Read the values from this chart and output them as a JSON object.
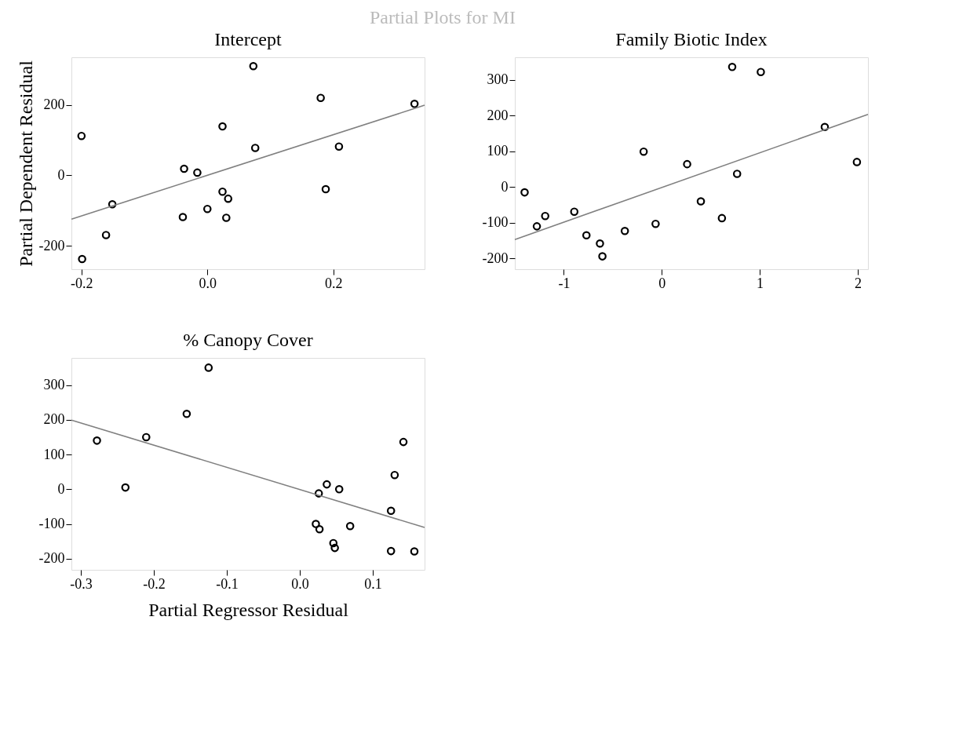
{
  "chart_data": [
    {
      "type": "scatter",
      "title": "Intercept",
      "ylabel": "Partial Dependent Residual",
      "annotations": [
        "Partial Plots for MI"
      ],
      "grid": false,
      "xlim": [
        -0.216,
        0.345
      ],
      "ylim": [
        -266,
        335
      ],
      "xticks": [
        {
          "value": -0.2,
          "label": "-0.2"
        },
        {
          "value": 0,
          "label": "0.0"
        },
        {
          "value": 0.2,
          "label": "0.2"
        }
      ],
      "yticks": [
        -200,
        0,
        200
      ],
      "series": [
        {
          "marker": "circle",
          "color": "#000000",
          "x": [
            -0.2,
            0.073,
            0.18,
            0.329,
            0.024,
            0.076,
            0.209,
            -0.037,
            -0.016,
            0.024,
            0.033,
            0.188,
            0.0,
            -0.039,
            0.03,
            -0.151,
            -0.161,
            -0.199
          ],
          "values": [
            112,
            310,
            220,
            203,
            139,
            78,
            82,
            19,
            8,
            -46,
            -66,
            -39,
            -95,
            -118,
            -120,
            -82,
            -169,
            -237
          ]
        },
        {
          "type": "line",
          "color": "#808080",
          "x": [
            -0.216,
            0.345
          ],
          "values": [
            -124,
            199
          ]
        }
      ]
    },
    {
      "type": "scatter",
      "title": "Family Biotic Index",
      "grid": false,
      "xlim": [
        -1.5,
        2.105
      ],
      "ylim": [
        -230,
        363
      ],
      "xticks": [
        -1,
        0,
        1,
        2
      ],
      "yticks": [
        -200,
        -100,
        0,
        100,
        200,
        300
      ],
      "series": [
        {
          "marker": "circle",
          "color": "#000000",
          "x": [
            -1.4,
            -1.275,
            -1.19,
            -0.893,
            -0.769,
            -0.631,
            -0.606,
            -0.377,
            -0.185,
            -0.063,
            0.259,
            0.399,
            0.614,
            0.719,
            0.769,
            1.011,
            1.664,
            1.992
          ],
          "values": [
            -15,
            -110,
            -81,
            -69,
            -135,
            -158,
            -194,
            -123,
            99,
            -103,
            64,
            -40,
            -87,
            336,
            37,
            322,
            168,
            70
          ]
        },
        {
          "type": "line",
          "color": "#808080",
          "x": [
            -1.5,
            2.105
          ],
          "values": [
            -147,
            203
          ]
        }
      ]
    },
    {
      "type": "scatter",
      "title": "% Canopy Cover",
      "xlabel": "Partial Regressor Residual",
      "grid": false,
      "xlim": [
        -0.313,
        0.171
      ],
      "ylim": [
        -232,
        378
      ],
      "xticks": [
        {
          "value": -0.3,
          "label": "-0.3"
        },
        {
          "value": -0.2,
          "label": "-0.2"
        },
        {
          "value": -0.1,
          "label": "-0.1"
        },
        {
          "value": 0,
          "label": "0.0"
        },
        {
          "value": 0.1,
          "label": "0.1"
        }
      ],
      "yticks": [
        -200,
        -100,
        0,
        100,
        200,
        300
      ],
      "series": [
        {
          "marker": "circle",
          "color": "#000000",
          "x": [
            -0.278,
            -0.239,
            -0.2105,
            -0.155,
            -0.125,
            0.026,
            0.037,
            0.054,
            0.022,
            0.027,
            0.046,
            0.048,
            0.069,
            0.125,
            0.13,
            0.142,
            0.125,
            0.157
          ],
          "values": [
            140,
            5,
            150,
            217,
            350,
            -12,
            14,
            0,
            -100,
            -115,
            -155,
            -169,
            -106,
            -62,
            41,
            136,
            -178,
            -179
          ]
        },
        {
          "type": "line",
          "color": "#808080",
          "x": [
            -0.313,
            0.171
          ],
          "values": [
            199,
            -110
          ]
        }
      ]
    }
  ]
}
